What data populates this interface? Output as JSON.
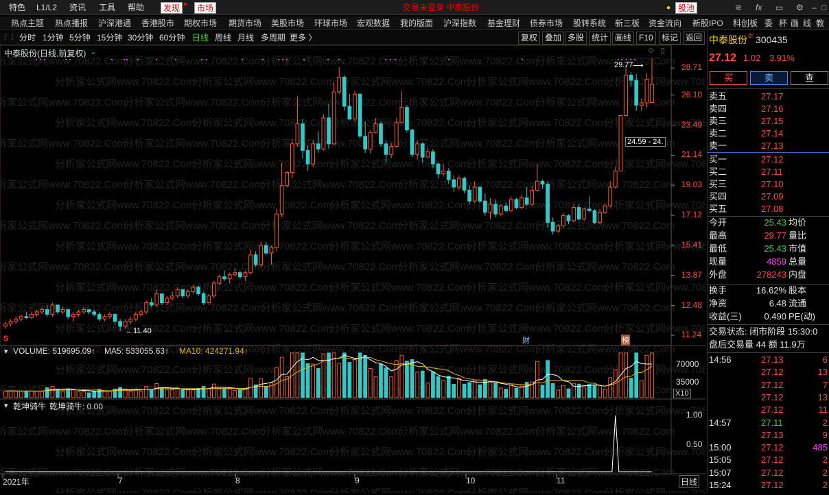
{
  "menubar": {
    "items": [
      "特色",
      "L1/L2",
      "资讯",
      "工具",
      "帮助",
      "发现",
      "市场"
    ],
    "center_text": "交易未登录 中泰股份",
    "gupiao_button": "股池",
    "icons": [
      "layers-icon",
      "formula-icon",
      "window-icon",
      "settings-icon",
      "minimize-icon",
      "maximize-icon",
      "close-icon"
    ]
  },
  "navbar": {
    "items": [
      "热点主题",
      "热点播报",
      "沪深港通",
      "香港股市",
      "期权市场",
      "期货市场",
      "美股市场",
      "环球市场",
      "宏观数据",
      "我的版面",
      "沪深指数",
      "基金理财",
      "债券市场",
      "股转系统",
      "新三板",
      "资金流向",
      "新股IPO",
      "科创板",
      "委",
      "杯",
      "画",
      "线",
      "教"
    ]
  },
  "periods": {
    "items": [
      "分时",
      "1分钟",
      "5分钟",
      "15分钟",
      "30分钟",
      "60分钟",
      "日线",
      "周线",
      "月线",
      "多周期",
      "更多 〉"
    ],
    "active": "日线",
    "tools": [
      "复权",
      "叠加",
      "多股",
      "统计",
      "画线",
      "F10",
      "标记",
      "返回"
    ]
  },
  "chart": {
    "title": "中泰股份(日线,前复权)",
    "watermark": "分析家公式网www.70822.Com",
    "price_axis": [
      "28.71",
      "26.10",
      "23.49",
      "21.14",
      "19.03",
      "17.12",
      "15.41",
      "13.87",
      "12.48",
      "11.24"
    ],
    "high_label": "29.77",
    "low_label": "11.40",
    "range_box": "24.59 - 24.",
    "markers": {
      "s": "S",
      "cai": "财",
      "bang": "榜"
    },
    "volume_header": {
      "volume": "VOLUME: 519695.09↑",
      "ma5": "MA5: 533055.63↑",
      "ma10": "MA10: 424271.94↑"
    },
    "volume_axis": [
      "70000",
      "35000"
    ],
    "volume_unit": "X10",
    "indicator_header": {
      "name": "乾坤骑牛",
      "value": "乾坤骑牛: 0.00"
    },
    "indicator_axis": [
      "1.00",
      "0.50"
    ],
    "date_axis": [
      "2021年",
      "7",
      "8",
      "9",
      "10",
      "11"
    ],
    "period_label": "日线"
  },
  "quote": {
    "name": "中泰股份",
    "superscript": "②",
    "code": "300435",
    "price": "27.12",
    "change": "1.02",
    "change_pct": "3.91%",
    "buttons": [
      "买",
      "卖",
      "查"
    ],
    "asks": [
      {
        "label": "卖五",
        "price": "27.17"
      },
      {
        "label": "卖四",
        "price": "27.16"
      },
      {
        "label": "卖三",
        "price": "27.15"
      },
      {
        "label": "卖二",
        "price": "27.14"
      },
      {
        "label": "卖一",
        "price": "27.13"
      }
    ],
    "bids": [
      {
        "label": "买一",
        "price": "27.12"
      },
      {
        "label": "买二",
        "price": "27.11"
      },
      {
        "label": "买三",
        "price": "27.10"
      },
      {
        "label": "买四",
        "price": "27.09"
      },
      {
        "label": "买五",
        "price": "27.08"
      }
    ],
    "stats": [
      {
        "l1": "今开",
        "v1": "25.43",
        "l2": "均价"
      },
      {
        "l1": "最高",
        "v1": "29.77",
        "l2": "量比"
      },
      {
        "l1": "最低",
        "v1": "25.43",
        "l2": "市值"
      },
      {
        "l1": "现量",
        "v1": "4859",
        "l2": "总量"
      },
      {
        "l1": "外盘",
        "v1": "278243",
        "l2": "内盘"
      }
    ],
    "stats2": [
      {
        "l1": "换手",
        "v1": "16.62%",
        "l2": "股本"
      },
      {
        "l1": "净资",
        "v1": "6.48",
        "l2": "流通"
      },
      {
        "l1": "收益(三)",
        "v1": "0.490",
        "l2": "PE(动)"
      }
    ],
    "status": "交易状态: 闭市阶段 15:30:0",
    "after_hours": "盘后交易量 44 额 11.9万",
    "ticks": [
      {
        "t": "14:56",
        "p": "27.13",
        "v": "6"
      },
      {
        "t": "",
        "p": "27.12",
        "v": "13"
      },
      {
        "t": "",
        "p": "27.12",
        "v": "7"
      },
      {
        "t": "",
        "p": "27.12",
        "v": "13"
      },
      {
        "t": "",
        "p": "27.12",
        "v": "11"
      },
      {
        "t": "14:57",
        "p": "27.11",
        "v": "2"
      },
      {
        "t": "",
        "p": "27.13",
        "v": "9"
      },
      {
        "t": "15:00",
        "p": "27.12",
        "v": "485"
      },
      {
        "t": "15:05",
        "p": "27.12",
        "v": "2"
      },
      {
        "t": "15:07",
        "p": "27.12",
        "v": "2"
      },
      {
        "t": "15:24",
        "p": "27.12",
        "v": "2"
      }
    ]
  },
  "chart_data": {
    "type": "candlestick",
    "title": "中泰股份(日线,前复权)",
    "ylim": [
      11.0,
      30.5
    ],
    "x_ticks": [
      "2021年",
      "7",
      "8",
      "9",
      "10",
      "11"
    ],
    "ohlc": [
      [
        11.6,
        11.8,
        11.5,
        11.7
      ],
      [
        11.7,
        11.9,
        11.6,
        11.8
      ],
      [
        11.8,
        12.0,
        11.7,
        11.9
      ],
      [
        11.9,
        12.1,
        11.8,
        12.0
      ],
      [
        12.0,
        12.2,
        11.9,
        11.95
      ],
      [
        11.95,
        12.2,
        11.9,
        12.1
      ],
      [
        12.1,
        12.3,
        12.0,
        12.2
      ],
      [
        12.2,
        12.4,
        12.1,
        12.3
      ],
      [
        12.3,
        12.5,
        12.0,
        12.1
      ],
      [
        12.1,
        12.6,
        12.0,
        12.5
      ],
      [
        12.5,
        12.5,
        12.1,
        12.2
      ],
      [
        12.2,
        12.4,
        12.1,
        12.3
      ],
      [
        12.3,
        12.3,
        11.9,
        12.0
      ],
      [
        12.0,
        12.2,
        11.8,
        12.1
      ],
      [
        12.1,
        12.3,
        12.0,
        12.2
      ],
      [
        12.2,
        12.4,
        12.1,
        12.3
      ],
      [
        12.3,
        12.3,
        12.1,
        12.2
      ],
      [
        12.2,
        12.3,
        12.0,
        12.1
      ],
      [
        12.1,
        12.2,
        11.8,
        11.9
      ],
      [
        11.9,
        12.1,
        11.8,
        12.0
      ],
      [
        12.0,
        12.2,
        11.9,
        12.1
      ],
      [
        12.1,
        12.1,
        11.7,
        11.8
      ],
      [
        11.8,
        11.9,
        11.4,
        11.6
      ],
      [
        11.6,
        11.9,
        11.5,
        11.8
      ],
      [
        11.8,
        12.0,
        11.7,
        11.9
      ],
      [
        11.9,
        12.2,
        11.8,
        12.1
      ],
      [
        12.1,
        12.3,
        12.0,
        12.2
      ],
      [
        12.2,
        12.7,
        12.1,
        12.6
      ],
      [
        12.6,
        12.8,
        12.4,
        12.5
      ],
      [
        12.5,
        13.2,
        12.4,
        13.0
      ],
      [
        13.0,
        13.0,
        12.5,
        12.6
      ],
      [
        12.6,
        12.9,
        12.5,
        12.8
      ],
      [
        12.8,
        13.1,
        12.7,
        12.9
      ],
      [
        12.9,
        13.3,
        12.8,
        13.2
      ],
      [
        13.2,
        13.2,
        12.8,
        12.9
      ],
      [
        12.9,
        13.2,
        12.8,
        13.1
      ],
      [
        13.1,
        13.4,
        13.0,
        13.3
      ],
      [
        13.3,
        13.4,
        12.9,
        13.0
      ],
      [
        13.0,
        13.1,
        12.5,
        12.6
      ],
      [
        12.6,
        13.0,
        12.5,
        12.9
      ],
      [
        12.9,
        13.6,
        12.8,
        13.5
      ],
      [
        13.5,
        13.9,
        13.4,
        13.8
      ],
      [
        13.8,
        14.1,
        13.6,
        13.7
      ],
      [
        13.7,
        14.0,
        13.5,
        13.9
      ],
      [
        13.9,
        14.2,
        13.8,
        14.0
      ],
      [
        14.0,
        14.1,
        13.7,
        13.8
      ],
      [
        13.8,
        14.1,
        13.6,
        14.0
      ],
      [
        14.0,
        15.2,
        13.9,
        14.9
      ],
      [
        14.9,
        15.1,
        14.3,
        14.4
      ],
      [
        14.4,
        15.6,
        14.3,
        15.4
      ],
      [
        15.4,
        15.6,
        14.9,
        15.0
      ],
      [
        15.0,
        15.4,
        14.4,
        15.3
      ],
      [
        15.3,
        17.5,
        15.1,
        17.2
      ],
      [
        17.2,
        20.6,
        17.0,
        19.0
      ],
      [
        19.0,
        20.0,
        18.9,
        19.9
      ],
      [
        19.9,
        22.4,
        19.5,
        22.0
      ],
      [
        22.0,
        26.0,
        21.8,
        23.6
      ],
      [
        23.6,
        24.0,
        20.9,
        21.5
      ],
      [
        21.5,
        21.9,
        20.0,
        20.5
      ],
      [
        20.5,
        22.3,
        20.3,
        22.0
      ],
      [
        22.0,
        23.0,
        21.3,
        21.6
      ],
      [
        21.6,
        24.4,
        21.5,
        24.1
      ],
      [
        24.1,
        25.3,
        21.6,
        22.0
      ],
      [
        22.0,
        27.3,
        21.9,
        26.4
      ],
      [
        26.4,
        28.8,
        26.2,
        27.8
      ],
      [
        27.8,
        28.0,
        24.7,
        25.1
      ],
      [
        25.1,
        26.2,
        23.9,
        24.0
      ],
      [
        24.0,
        26.5,
        23.8,
        26.2
      ],
      [
        26.2,
        26.2,
        22.4,
        22.6
      ],
      [
        22.6,
        23.8,
        21.3,
        21.6
      ],
      [
        21.6,
        23.1,
        21.3,
        22.9
      ],
      [
        22.9,
        24.1,
        22.8,
        23.6
      ],
      [
        23.6,
        23.8,
        21.8,
        22.0
      ],
      [
        22.0,
        22.3,
        20.6,
        21.2
      ],
      [
        21.2,
        22.1,
        20.9,
        21.8
      ],
      [
        21.8,
        24.1,
        21.7,
        23.7
      ],
      [
        23.7,
        26.5,
        23.6,
        25.0
      ],
      [
        25.0,
        25.2,
        22.9,
        23.1
      ],
      [
        23.1,
        23.2,
        21.0,
        21.2
      ],
      [
        21.2,
        22.3,
        20.8,
        22.0
      ],
      [
        22.0,
        22.1,
        20.6,
        21.0
      ],
      [
        21.0,
        21.7,
        20.9,
        21.4
      ],
      [
        21.4,
        21.6,
        20.2,
        20.5
      ],
      [
        20.5,
        20.6,
        19.5,
        19.8
      ],
      [
        19.8,
        20.5,
        19.6,
        20.0
      ],
      [
        20.0,
        20.2,
        19.1,
        19.4
      ],
      [
        19.4,
        19.7,
        18.6,
        18.9
      ],
      [
        18.9,
        19.7,
        18.7,
        19.5
      ],
      [
        19.5,
        19.6,
        18.5,
        18.7
      ],
      [
        18.7,
        19.0,
        17.8,
        18.0
      ],
      [
        18.0,
        19.3,
        17.9,
        18.9
      ],
      [
        18.9,
        18.9,
        17.9,
        18.0
      ],
      [
        18.0,
        18.5,
        17.1,
        17.3
      ],
      [
        17.3,
        18.2,
        16.9,
        17.8
      ],
      [
        17.8,
        18.1,
        17.0,
        17.2
      ],
      [
        17.2,
        17.8,
        17.1,
        17.7
      ],
      [
        17.7,
        17.9,
        17.3,
        17.4
      ],
      [
        17.4,
        18.3,
        17.3,
        18.1
      ],
      [
        18.1,
        18.2,
        17.5,
        17.6
      ],
      [
        17.6,
        18.4,
        17.5,
        18.2
      ],
      [
        18.2,
        18.9,
        17.7,
        17.8
      ],
      [
        17.8,
        19.0,
        17.7,
        18.7
      ],
      [
        18.7,
        20.5,
        18.6,
        19.3
      ],
      [
        19.3,
        19.4,
        18.8,
        19.1
      ],
      [
        19.1,
        19.3,
        16.4,
        16.7
      ],
      [
        16.7,
        17.0,
        16.0,
        16.2
      ],
      [
        16.2,
        16.6,
        16.1,
        16.5
      ],
      [
        16.5,
        17.3,
        16.4,
        17.1
      ],
      [
        17.1,
        17.2,
        16.6,
        16.8
      ],
      [
        16.8,
        17.8,
        16.7,
        17.6
      ],
      [
        17.6,
        17.8,
        16.8,
        16.9
      ],
      [
        16.9,
        17.6,
        16.8,
        17.5
      ],
      [
        17.5,
        18.3,
        17.3,
        17.4
      ],
      [
        17.4,
        17.5,
        16.6,
        16.7
      ],
      [
        16.7,
        17.5,
        16.6,
        17.3
      ],
      [
        17.3,
        17.8,
        17.2,
        17.7
      ],
      [
        17.7,
        19.3,
        17.6,
        18.9
      ],
      [
        18.9,
        20.3,
        18.8,
        20.0
      ],
      [
        20.0,
        24.3,
        20.0,
        24.3
      ],
      [
        24.3,
        29.0,
        24.2,
        28.0
      ],
      [
        28.0,
        28.3,
        26.9,
        27.5
      ],
      [
        27.5,
        28.1,
        24.7,
        25.2
      ],
      [
        25.2,
        25.8,
        24.7,
        25.4
      ],
      [
        25.4,
        28.2,
        25.0,
        27.6
      ],
      [
        25.43,
        29.77,
        25.43,
        27.12
      ]
    ],
    "volume_ylim": [
      0,
      80000
    ],
    "volume_ticks": [
      70000,
      35000
    ]
  }
}
